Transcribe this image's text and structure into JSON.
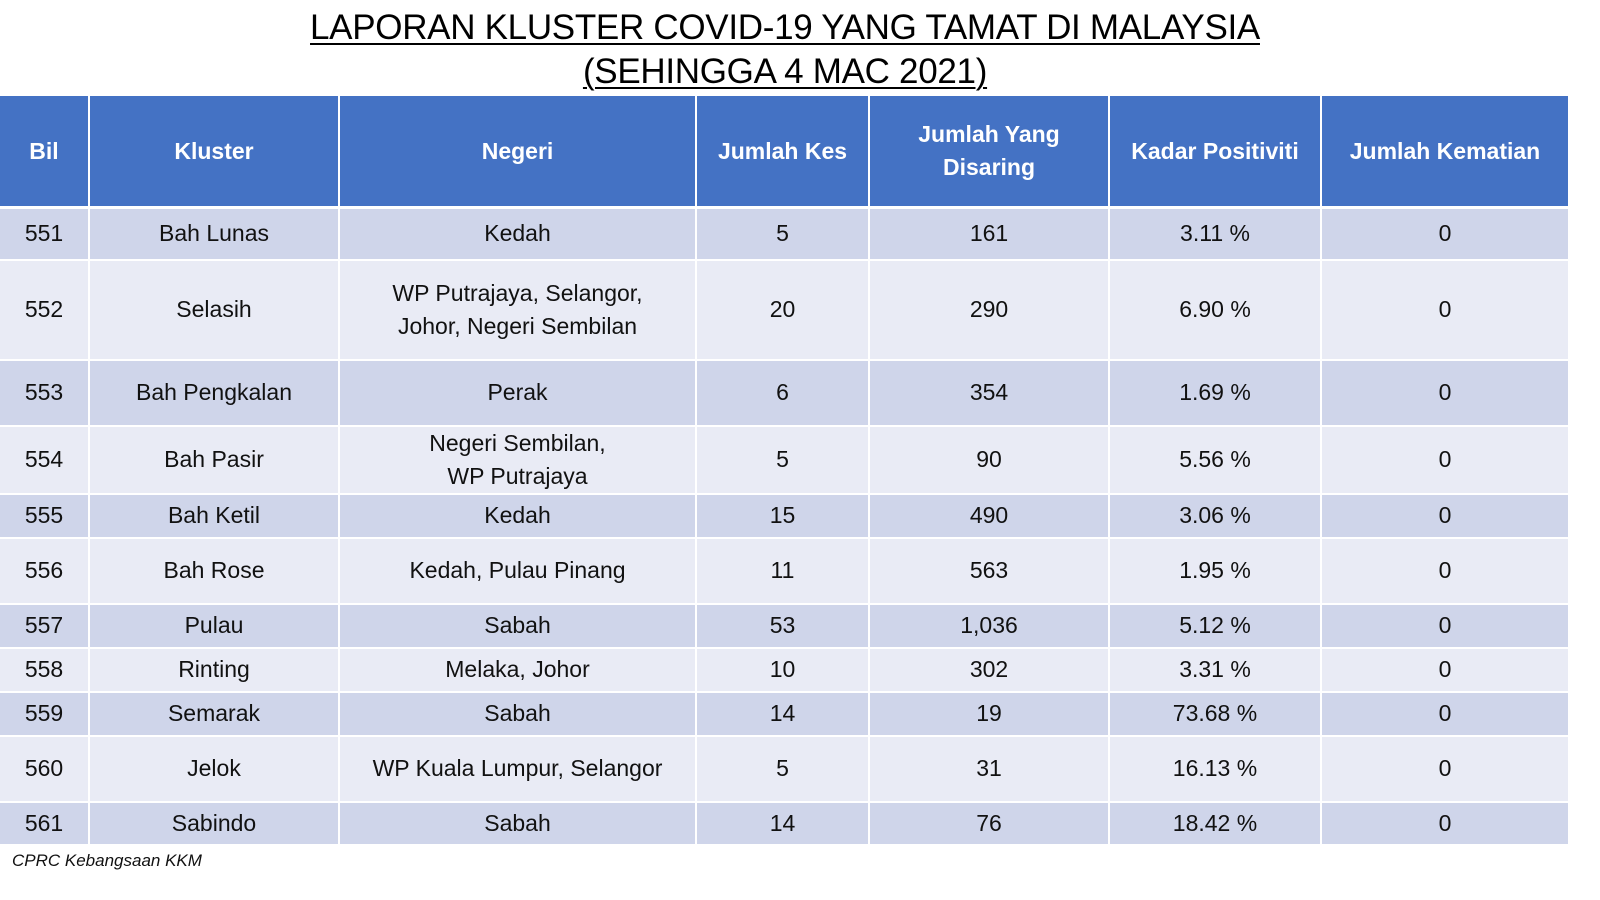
{
  "title": {
    "line1": "LAPORAN KLUSTER COVID-19 YANG TAMAT DI MALAYSIA",
    "line2": "(SEHINGGA 4 MAC 2021)"
  },
  "table": {
    "headers": [
      "Bil",
      "Kluster",
      "Negeri",
      "Jumlah Kes",
      "Jumlah Yang Disaring",
      "Kadar Positiviti",
      "Jumlah Kematian"
    ],
    "rows": [
      {
        "bil": "551",
        "kluster": "Bah Lunas",
        "negeri": [
          "Kedah"
        ],
        "kes": "5",
        "disaring": "161",
        "positiviti": "3.11 %",
        "kematian": "0"
      },
      {
        "bil": "552",
        "kluster": "Selasih",
        "negeri": [
          "WP Putrajaya, Selangor,",
          "Johor, Negeri Sembilan"
        ],
        "kes": "20",
        "disaring": "290",
        "positiviti": "6.90 %",
        "kematian": "0"
      },
      {
        "bil": "553",
        "kluster": "Bah Pengkalan",
        "negeri": [
          "Perak"
        ],
        "kes": "6",
        "disaring": "354",
        "positiviti": "1.69 %",
        "kematian": "0"
      },
      {
        "bil": "554",
        "kluster": "Bah Pasir",
        "negeri": [
          "Negeri Sembilan,",
          "WP Putrajaya"
        ],
        "kes": "5",
        "disaring": "90",
        "positiviti": "5.56 %",
        "kematian": "0"
      },
      {
        "bil": "555",
        "kluster": "Bah Ketil",
        "negeri": [
          "Kedah"
        ],
        "kes": "15",
        "disaring": "490",
        "positiviti": "3.06 %",
        "kematian": "0"
      },
      {
        "bil": "556",
        "kluster": "Bah Rose",
        "negeri": [
          "Kedah, Pulau Pinang"
        ],
        "kes": "11",
        "disaring": "563",
        "positiviti": "1.95 %",
        "kematian": "0"
      },
      {
        "bil": "557",
        "kluster": "Pulau",
        "negeri": [
          "Sabah"
        ],
        "kes": "53",
        "disaring": "1,036",
        "positiviti": "5.12 %",
        "kematian": "0"
      },
      {
        "bil": "558",
        "kluster": "Rinting",
        "negeri": [
          "Melaka, Johor"
        ],
        "kes": "10",
        "disaring": "302",
        "positiviti": "3.31 %",
        "kematian": "0"
      },
      {
        "bil": "559",
        "kluster": "Semarak",
        "negeri": [
          "Sabah"
        ],
        "kes": "14",
        "disaring": "19",
        "positiviti": "73.68 %",
        "kematian": "0"
      },
      {
        "bil": "560",
        "kluster": "Jelok",
        "negeri": [
          "WP Kuala Lumpur, Selangor"
        ],
        "kes": "5",
        "disaring": "31",
        "positiviti": "16.13 %",
        "kematian": "0"
      },
      {
        "bil": "561",
        "kluster": "Sabindo",
        "negeri": [
          "Sabah"
        ],
        "kes": "14",
        "disaring": "76",
        "positiviti": "18.42 %",
        "kematian": "0"
      }
    ]
  },
  "footnote": "CPRC Kebangsaan KKM",
  "colors": {
    "header_bg": "#4472c4",
    "row_odd": "#cfd5ea",
    "row_even": "#e9ebf5"
  }
}
